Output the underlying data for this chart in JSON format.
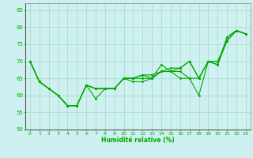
{
  "xlabel": "Humidité relative (%)",
  "bg_color": "#cff0f0",
  "grid_color": "#aaddcc",
  "line_color": "#00aa00",
  "series": [
    [
      70,
      64,
      62,
      60,
      57,
      57,
      63,
      59,
      62,
      62,
      65,
      64,
      64,
      65,
      69,
      67,
      65,
      65,
      60,
      70,
      70,
      76,
      79,
      78
    ],
    [
      70,
      64,
      62,
      60,
      57,
      57,
      63,
      62,
      62,
      62,
      65,
      65,
      65,
      65,
      67,
      67,
      67,
      65,
      65,
      70,
      69,
      76,
      79,
      78
    ],
    [
      70,
      64,
      62,
      60,
      57,
      57,
      63,
      62,
      62,
      62,
      65,
      65,
      66,
      65,
      67,
      67,
      68,
      70,
      65,
      70,
      69,
      77,
      79,
      78
    ],
    [
      70,
      64,
      62,
      60,
      57,
      57,
      63,
      62,
      62,
      62,
      65,
      65,
      66,
      66,
      67,
      68,
      68,
      70,
      65,
      70,
      69,
      77,
      79,
      78
    ]
  ],
  "xlim": [
    -0.5,
    23.5
  ],
  "ylim": [
    50,
    87
  ],
  "yticks": [
    50,
    55,
    60,
    65,
    70,
    75,
    80,
    85
  ],
  "xticks": [
    0,
    1,
    2,
    3,
    4,
    5,
    6,
    7,
    8,
    9,
    10,
    11,
    12,
    13,
    14,
    15,
    16,
    17,
    18,
    19,
    20,
    21,
    22,
    23
  ],
  "xtick_labels": [
    "0",
    "1",
    "2",
    "3",
    "4",
    "5",
    "6",
    "7",
    "8",
    "9",
    "10",
    "11",
    "12",
    "13",
    "14",
    "15",
    "16",
    "17",
    "18",
    "19",
    "20",
    "21",
    "22",
    "23"
  ]
}
